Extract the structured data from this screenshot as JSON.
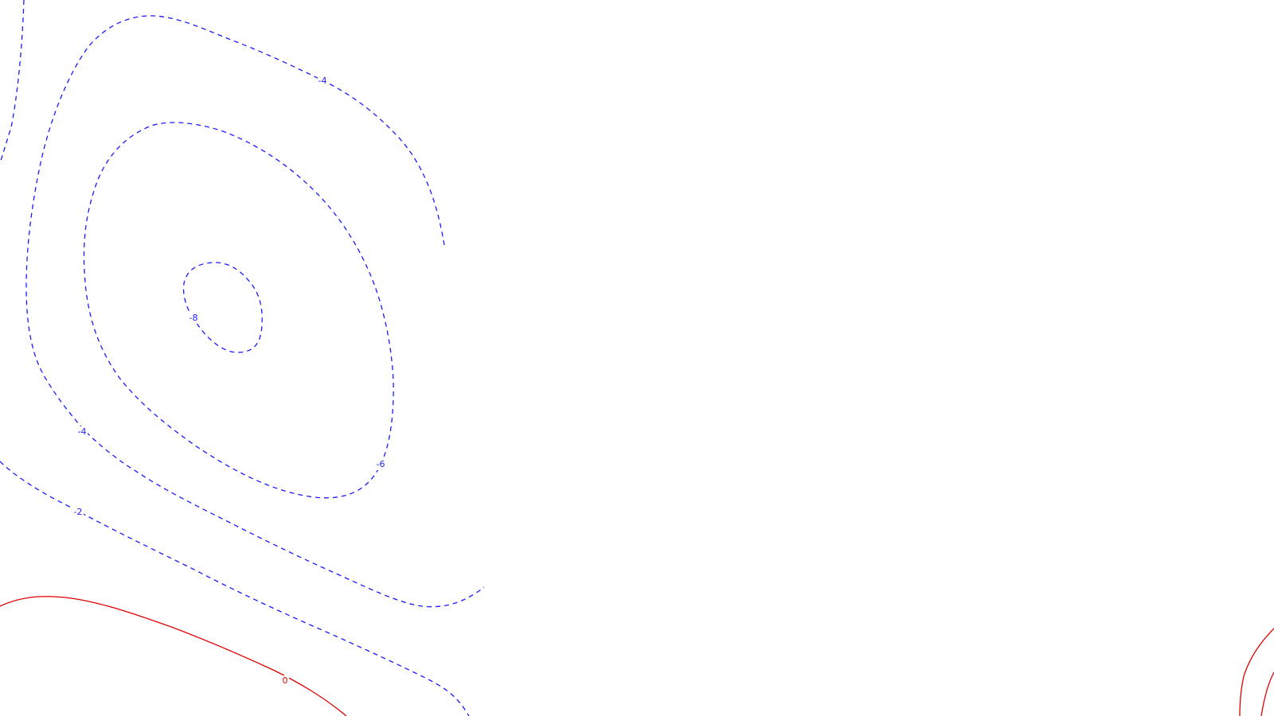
{
  "map": {
    "type": "contour",
    "colors": {
      "negative": "#1a1aff",
      "zero": "#e00000",
      "background": "#ffffff"
    },
    "line_styles": {
      "negative": "dashed",
      "zero": "solid"
    },
    "contour_labels": {
      "c_4_upper": "-4",
      "c_8": "-8",
      "c_4_lower": "-4",
      "c_6": "-6",
      "c_2": "-2",
      "c_0": "0"
    }
  }
}
